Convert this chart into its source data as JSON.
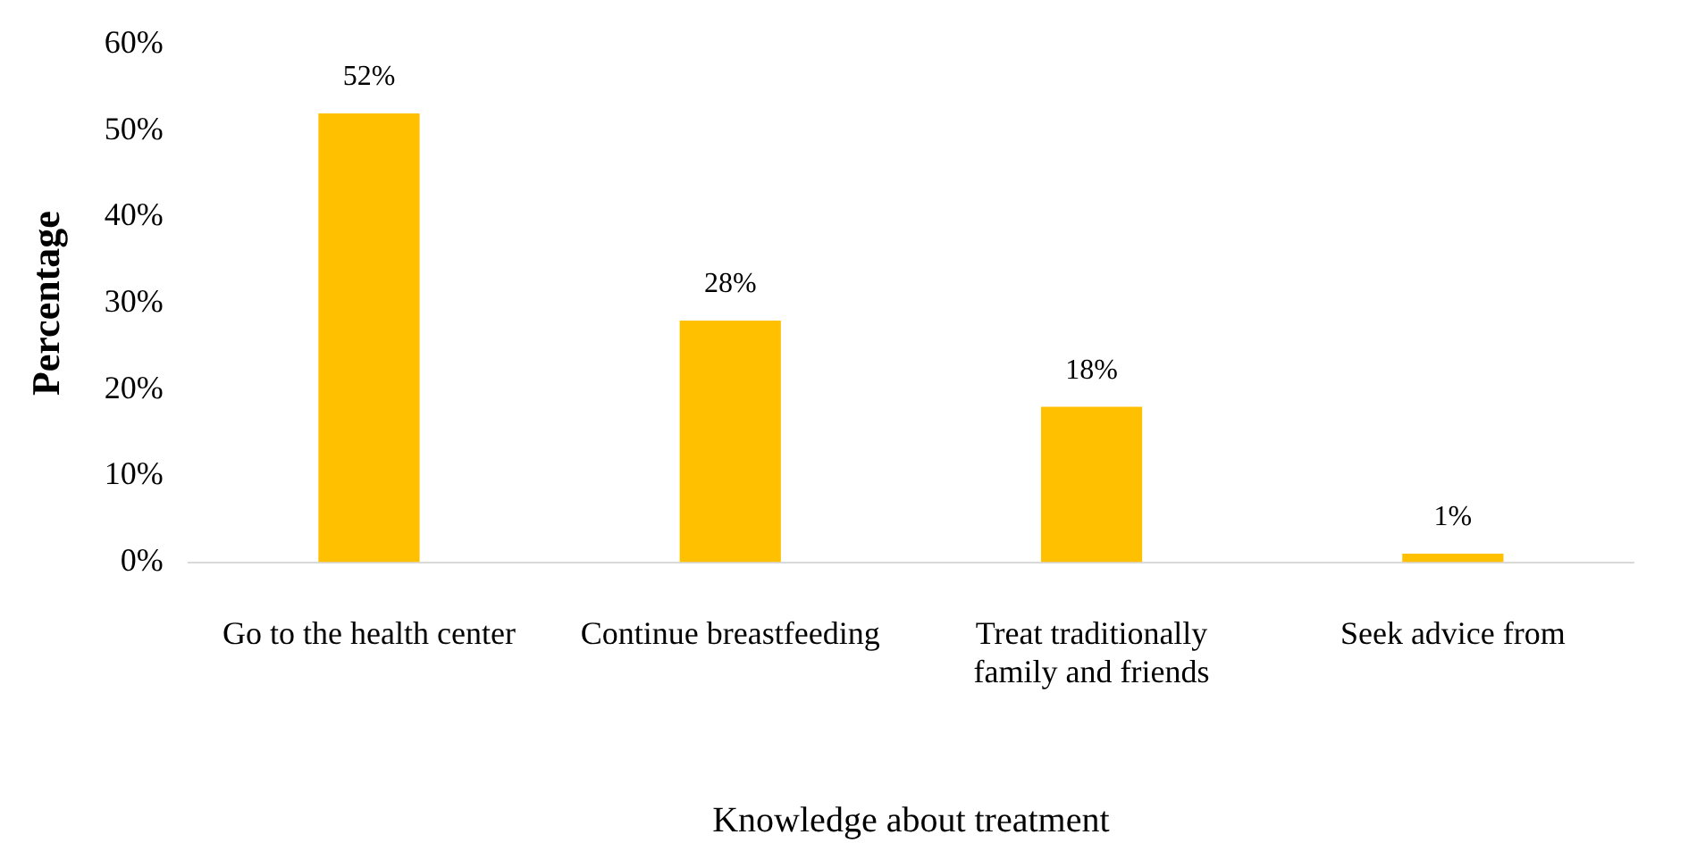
{
  "chart_data": {
    "type": "bar",
    "xlabel": "Knowledge about treatment",
    "ylabel": "Percentage",
    "categories": [
      "Go to the health center",
      "Continue breastfeeding",
      "Treat traditionally family and friends",
      "Seek advice from"
    ],
    "values": [
      52,
      28,
      18,
      1
    ],
    "color": "#ffc000",
    "value_labels": [
      "52%",
      "28%",
      "18%",
      "1%"
    ],
    "ylim": [
      0,
      60
    ],
    "yticks": [
      {
        "value": 0,
        "label": "0%"
      },
      {
        "value": 10,
        "label": "10%"
      },
      {
        "value": 20,
        "label": "20%"
      },
      {
        "value": 30,
        "label": "30%"
      },
      {
        "value": 40,
        "label": "40%"
      },
      {
        "value": 50,
        "label": "50%"
      },
      {
        "value": 60,
        "label": "60%"
      }
    ],
    "grid": false,
    "legend": false
  }
}
